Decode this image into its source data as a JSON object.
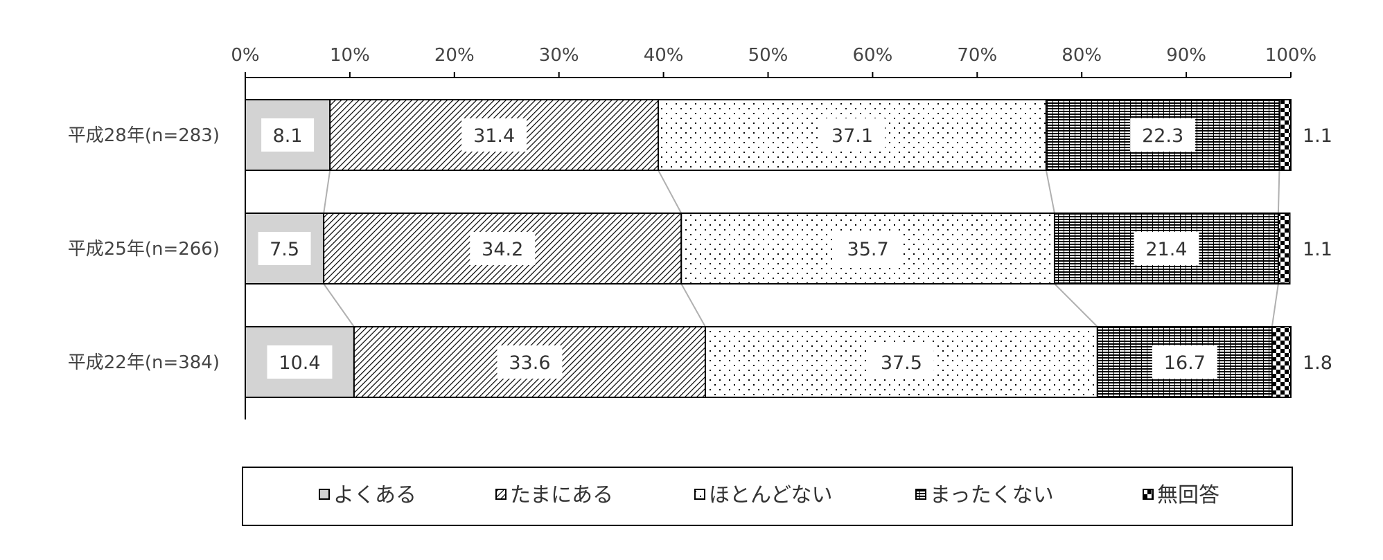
{
  "chart_data": {
    "type": "bar",
    "orientation": "horizontal",
    "stacked": "percent",
    "categories": [
      "平成28年(n=283)",
      "平成25年(n=266)",
      "平成22年(n=384)"
    ],
    "series": [
      {
        "name": "よくある",
        "values": [
          8.1,
          7.5,
          10.4
        ],
        "pattern": "solid-gray"
      },
      {
        "name": "たまにある",
        "values": [
          31.4,
          34.2,
          33.6
        ],
        "pattern": "diagonal-hatch"
      },
      {
        "name": "ほとんどない",
        "values": [
          37.1,
          35.7,
          37.5
        ],
        "pattern": "dots"
      },
      {
        "name": "まったくない",
        "values": [
          22.3,
          21.4,
          16.7
        ],
        "pattern": "horizontal-lines"
      },
      {
        "name": "無回答",
        "values": [
          1.1,
          1.1,
          1.8
        ],
        "pattern": "checker"
      }
    ],
    "value_labels": [
      [
        "8.1",
        "31.4",
        "37.1",
        "22.3",
        "1.1"
      ],
      [
        "7.5",
        "34.2",
        "35.7",
        "21.4",
        "1.1"
      ],
      [
        "10.4",
        "33.6",
        "37.5",
        "16.7",
        "1.8"
      ]
    ],
    "x_ticks": [
      "0%",
      "10%",
      "20%",
      "30%",
      "40%",
      "50%",
      "60%",
      "70%",
      "80%",
      "90%",
      "100%"
    ],
    "xlim": [
      0,
      100
    ],
    "legend_position": "bottom",
    "series_lines": true,
    "colors": {
      "gray_fill": "#d3d3d3",
      "ink": "#000000",
      "text": "#444444",
      "connector": "#b0b0b0"
    }
  }
}
